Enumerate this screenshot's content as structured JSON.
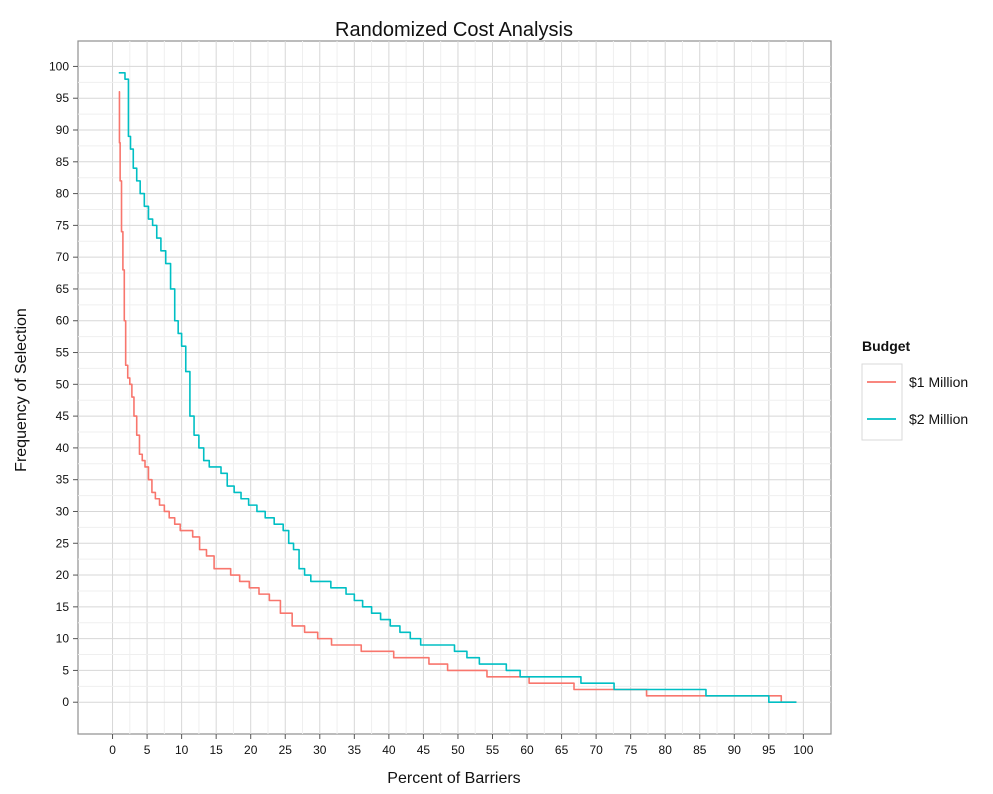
{
  "chart_data": {
    "type": "line",
    "title": "Randomized Cost Analysis",
    "xlabel": "Percent of Barriers",
    "ylabel": "Frequency of Selection",
    "xlim": [
      -5,
      104
    ],
    "ylim": [
      -5,
      104
    ],
    "x_ticks": [
      0,
      5,
      10,
      15,
      20,
      25,
      30,
      35,
      40,
      45,
      50,
      55,
      60,
      65,
      70,
      75,
      80,
      85,
      90,
      95,
      100
    ],
    "y_ticks": [
      0,
      5,
      10,
      15,
      20,
      25,
      30,
      35,
      40,
      45,
      50,
      55,
      60,
      65,
      70,
      75,
      80,
      85,
      90,
      95,
      100
    ],
    "grid": true,
    "legend": {
      "title": "Budget",
      "position": "right"
    },
    "series": [
      {
        "name": "$1 Million",
        "color": "#F8766D",
        "x": [
          0.9,
          1.0,
          1.1,
          1.3,
          1.5,
          1.7,
          1.9,
          2.2,
          2.5,
          2.8,
          3.1,
          3.5,
          3.9,
          4.3,
          4.7,
          5.2,
          5.7,
          6.2,
          6.8,
          7.5,
          8.2,
          9.0,
          9.8,
          10.7,
          11.6,
          12.6,
          13.6,
          14.7,
          15.9,
          17.1,
          18.4,
          19.8,
          21.2,
          22.7,
          24.3,
          26.0,
          27.8,
          29.7,
          31.7,
          33.8,
          36.0,
          38.3,
          40.7,
          43.2,
          45.8,
          48.5,
          51.3,
          54.2,
          57.2,
          60.3,
          63.5,
          66.8,
          70.2,
          73.7,
          77.3,
          81.0,
          84.8,
          88.7,
          92.7,
          96.8,
          99.0
        ],
        "y": [
          96,
          88,
          82,
          74,
          68,
          60,
          53,
          51,
          50,
          48,
          45,
          42,
          39,
          38,
          37,
          35,
          33,
          32,
          31,
          30,
          29,
          28,
          27,
          27,
          26,
          24,
          23,
          21,
          21,
          20,
          19,
          18,
          17,
          16,
          14,
          12,
          11,
          10,
          9,
          9,
          8,
          8,
          7,
          7,
          6,
          5,
          5,
          4,
          4,
          3,
          3,
          2,
          2,
          2,
          1,
          1,
          1,
          1,
          1,
          0,
          0
        ]
      },
      {
        "name": "$2 Million",
        "color": "#00BFC4",
        "x": [
          0.9,
          1.3,
          1.8,
          2.3,
          2.6,
          3.0,
          3.5,
          4.0,
          4.6,
          5.2,
          5.8,
          6.4,
          7.0,
          7.7,
          8.4,
          9.0,
          9.5,
          10.0,
          10.6,
          11.2,
          11.8,
          12.5,
          13.2,
          14.0,
          14.8,
          15.7,
          16.6,
          17.6,
          18.6,
          19.7,
          20.9,
          22.1,
          23.4,
          24.7,
          25.5,
          26.2,
          27.0,
          27.8,
          28.7,
          29.6,
          30.6,
          31.6,
          32.7,
          33.8,
          35.0,
          36.2,
          37.5,
          38.8,
          40.2,
          41.6,
          43.1,
          44.6,
          46.2,
          47.8,
          49.5,
          51.3,
          53.1,
          55.0,
          57.0,
          59.0,
          61.1,
          63.3,
          65.5,
          67.8,
          70.2,
          72.6,
          75.1,
          77.7,
          80.4,
          83.1,
          85.9,
          88.8,
          91.8,
          93.0,
          95.0,
          97.0,
          99.0
        ],
        "y": [
          99,
          99,
          98,
          89,
          87,
          84,
          82,
          80,
          78,
          76,
          75,
          73,
          71,
          69,
          65,
          60,
          58,
          56,
          52,
          45,
          42,
          40,
          38,
          37,
          37,
          36,
          34,
          33,
          32,
          31,
          30,
          29,
          28,
          27,
          25,
          24,
          21,
          20,
          19,
          19,
          19,
          18,
          18,
          17,
          16,
          15,
          14,
          13,
          12,
          11,
          10,
          9,
          9,
          9,
          8,
          7,
          6,
          6,
          5,
          4,
          4,
          4,
          4,
          3,
          3,
          2,
          2,
          2,
          2,
          2,
          1,
          1,
          1,
          1,
          0,
          0,
          0
        ]
      }
    ]
  }
}
